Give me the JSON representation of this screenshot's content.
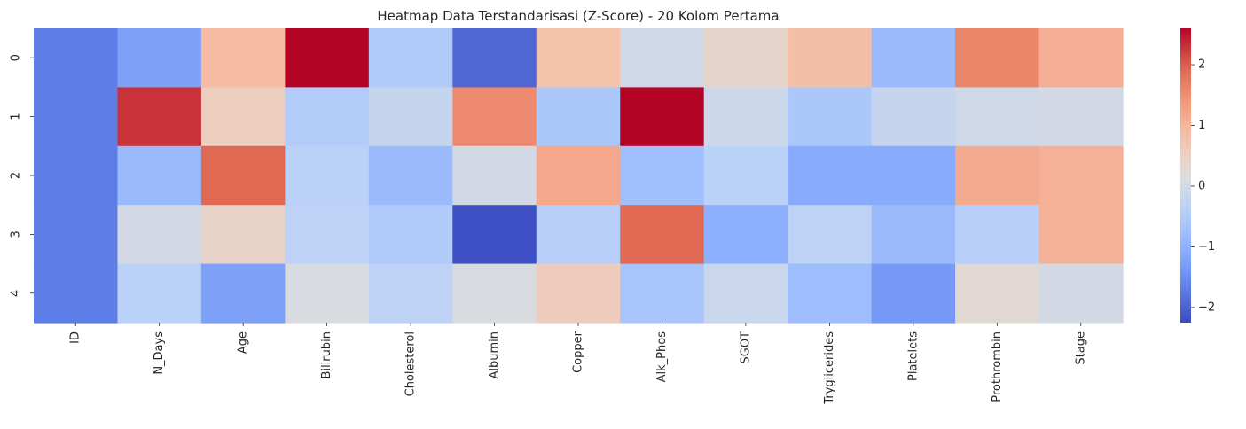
{
  "chart_data": {
    "type": "heatmap",
    "title": "Heatmap Data Terstandarisasi (Z-Score) - 20 Kolom Pertama",
    "columns": [
      "ID",
      "N_Days",
      "Age",
      "Bilirubin",
      "Cholesterol",
      "Albumin",
      "Copper",
      "Alk_Phos",
      "SGOT",
      "Tryglicerides",
      "Platelets",
      "Prothrombin",
      "Stage"
    ],
    "rows": [
      "0",
      "1",
      "2",
      "3",
      "4"
    ],
    "values": [
      [
        -1.7,
        -1.25,
        0.9,
        2.6,
        -0.55,
        -1.95,
        0.8,
        -0.05,
        0.4,
        0.85,
        -0.85,
        1.6,
        1.1
      ],
      [
        -1.7,
        2.3,
        0.55,
        -0.5,
        -0.2,
        1.55,
        -0.6,
        2.6,
        -0.1,
        -0.6,
        -0.2,
        -0.05,
        0.0
      ],
      [
        -1.7,
        -0.85,
        1.9,
        -0.4,
        -0.85,
        0.0,
        1.2,
        -0.75,
        -0.4,
        -1.1,
        -1.1,
        1.15,
        1.05
      ],
      [
        -1.7,
        0.0,
        0.45,
        -0.35,
        -0.55,
        -2.2,
        -0.45,
        1.9,
        -1.05,
        -0.35,
        -0.85,
        -0.45,
        1.05
      ],
      [
        -1.7,
        -0.4,
        -1.25,
        0.1,
        -0.35,
        0.1,
        0.6,
        -0.65,
        -0.15,
        -0.8,
        -1.35,
        0.3,
        0.0
      ]
    ],
    "colormap": "coolwarm",
    "vmin": -2.25,
    "vmax": 2.6,
    "colorbar_ticks": [
      2,
      1,
      0,
      -1,
      -2
    ],
    "colorbar_tick_labels": [
      "2",
      "1",
      "0",
      "−1",
      "−2"
    ]
  }
}
